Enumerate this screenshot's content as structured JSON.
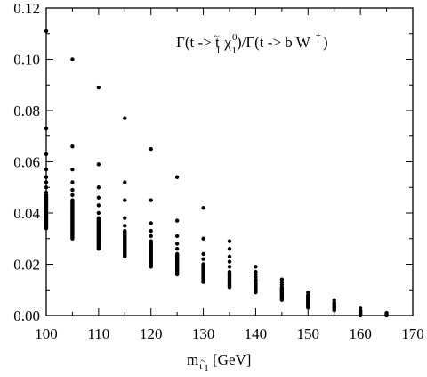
{
  "chart_data": {
    "type": "scatter",
    "title": "",
    "annotation": {
      "prefix": "Γ(t -> t",
      "tilde": "~",
      "sub1": "1",
      "chi": " χ",
      "chi_sup": "0",
      "sub2": "1",
      "middle": ")/Γ(t -> b W",
      "plus": "+",
      "close": ")"
    },
    "xlabel": {
      "main": "m",
      "sub_t": "t",
      "sub_tilde": "~",
      "sub_1": "1",
      "unit": " [GeV]"
    },
    "ylabel": "",
    "xlim": [
      100,
      170
    ],
    "ylim": [
      0.0,
      0.12
    ],
    "xticks": [
      "100",
      "110",
      "120",
      "130",
      "140",
      "150",
      "160",
      "170"
    ],
    "yticks": [
      "0.00",
      "0.02",
      "0.04",
      "0.06",
      "0.08",
      "0.10",
      "0.12"
    ],
    "grid": false,
    "legend": "none",
    "columns": [
      {
        "x": 100,
        "band": [
          0.034,
          0.047
        ],
        "sparse": [
          0.048,
          0.05,
          0.052,
          0.054,
          0.057,
          0.063,
          0.073,
          0.111
        ]
      },
      {
        "x": 105,
        "band": [
          0.03,
          0.045
        ],
        "sparse": [
          0.047,
          0.049,
          0.052,
          0.057,
          0.066,
          0.1
        ]
      },
      {
        "x": 110,
        "band": [
          0.026,
          0.038
        ],
        "sparse": [
          0.04,
          0.043,
          0.046,
          0.05,
          0.059,
          0.089
        ]
      },
      {
        "x": 115,
        "band": [
          0.023,
          0.033
        ],
        "sparse": [
          0.035,
          0.038,
          0.045,
          0.052,
          0.077
        ]
      },
      {
        "x": 120,
        "band": [
          0.019,
          0.029
        ],
        "sparse": [
          0.031,
          0.033,
          0.036,
          0.045,
          0.065
        ]
      },
      {
        "x": 125,
        "band": [
          0.016,
          0.024
        ],
        "sparse": [
          0.026,
          0.028,
          0.031,
          0.037,
          0.054
        ]
      },
      {
        "x": 130,
        "band": [
          0.013,
          0.02
        ],
        "sparse": [
          0.022,
          0.024,
          0.03,
          0.042
        ]
      },
      {
        "x": 135,
        "band": [
          0.011,
          0.017
        ],
        "sparse": [
          0.019,
          0.021,
          0.023,
          0.026,
          0.029
        ]
      },
      {
        "x": 140,
        "band": [
          0.009,
          0.014
        ],
        "sparse": [
          0.015,
          0.016,
          0.017,
          0.019
        ]
      },
      {
        "x": 145,
        "band": [
          0.006,
          0.011
        ],
        "sparse": [
          0.012,
          0.013,
          0.014
        ]
      },
      {
        "x": 150,
        "band": [
          0.003,
          0.008
        ],
        "sparse": [
          0.009
        ]
      },
      {
        "x": 155,
        "band": [
          0.002,
          0.005
        ],
        "sparse": [
          0.006
        ]
      },
      {
        "x": 160,
        "band": [
          0.0,
          0.002
        ],
        "sparse": [
          0.003
        ]
      },
      {
        "x": 165,
        "band": [
          0.0,
          0.001
        ],
        "sparse": []
      }
    ]
  }
}
